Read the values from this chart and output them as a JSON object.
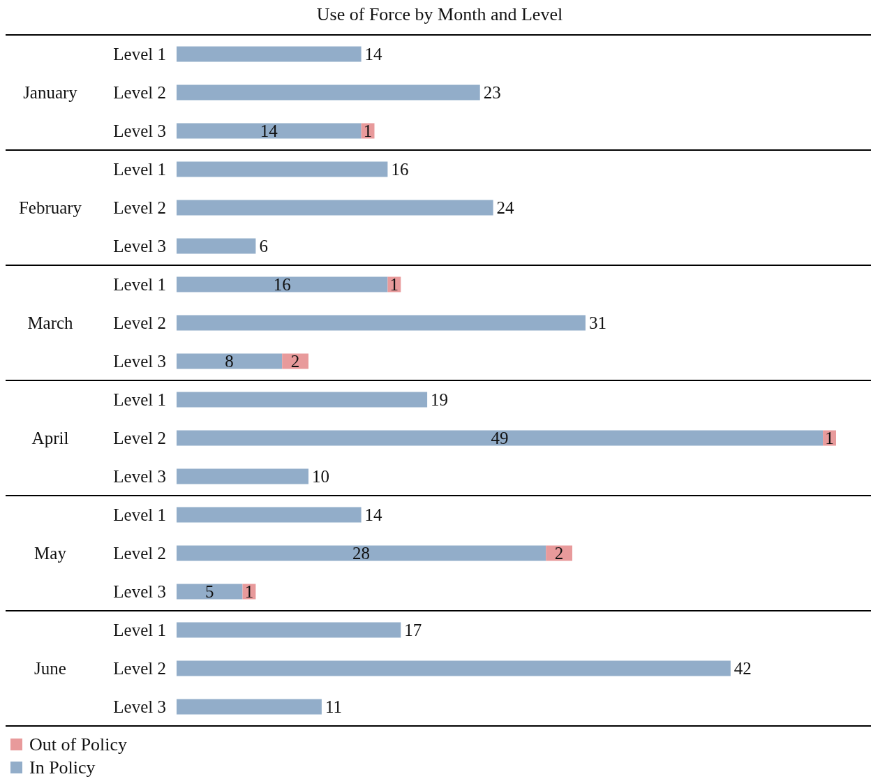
{
  "chart_data": {
    "type": "bar",
    "orientation": "horizontal",
    "stacked": true,
    "title": "Use of Force by Month and Level",
    "categories": [
      "Level 1",
      "Level 2",
      "Level 3",
      "Level 1",
      "Level 2",
      "Level 3",
      "Level 1",
      "Level 2",
      "Level 3",
      "Level 1",
      "Level 2",
      "Level 3",
      "Level 1",
      "Level 2",
      "Level 3",
      "Level 1",
      "Level 2",
      "Level 3"
    ],
    "annotations": [
      "January",
      "February",
      "March",
      "April",
      "May",
      "June"
    ],
    "series": [
      {
        "name": "In Policy",
        "color": "#92adc9",
        "values": [
          14,
          23,
          14,
          16,
          24,
          6,
          16,
          31,
          8,
          19,
          49,
          10,
          14,
          28,
          5,
          17,
          42,
          11
        ]
      },
      {
        "name": "Out of Policy",
        "color": "#e89a9b",
        "values": [
          null,
          null,
          1,
          null,
          null,
          null,
          1,
          null,
          2,
          null,
          1,
          null,
          null,
          2,
          1,
          null,
          null,
          null
        ]
      }
    ],
    "data_labels": true,
    "legend": "bottom left"
  }
}
